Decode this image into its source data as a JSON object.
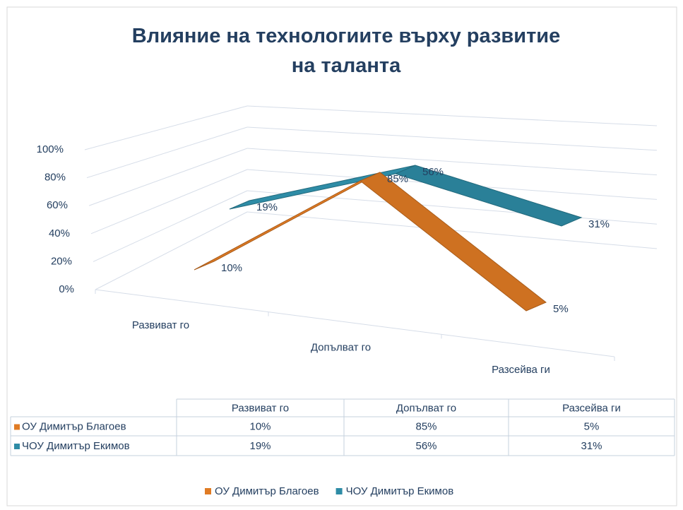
{
  "chart_data": {
    "type": "line3d",
    "title": "Влияние на технологиите върху развитие на таланта",
    "categories": [
      "Развиват го",
      "Допълват го",
      "Разсейва ги"
    ],
    "series": [
      {
        "name": "ОУ Димитър Благоев",
        "color": "#e07b24",
        "values": [
          10,
          85,
          5
        ],
        "value_labels": [
          "10%",
          "85%",
          "5%"
        ]
      },
      {
        "name": "ЧОУ Димитър Екимов",
        "color": "#2e8ca6",
        "values": [
          19,
          56,
          31
        ],
        "value_labels": [
          "19%",
          "56%",
          "31%"
        ]
      }
    ],
    "ylim": [
      0,
      100
    ],
    "yticks": [
      {
        "value": 0,
        "label": "0%"
      },
      {
        "value": 20,
        "label": "20%"
      },
      {
        "value": 40,
        "label": "40%"
      },
      {
        "value": 60,
        "label": "60%"
      },
      {
        "value": 80,
        "label": "80%"
      },
      {
        "value": 100,
        "label": "100%"
      }
    ],
    "grid": true,
    "legend": "bottom"
  }
}
